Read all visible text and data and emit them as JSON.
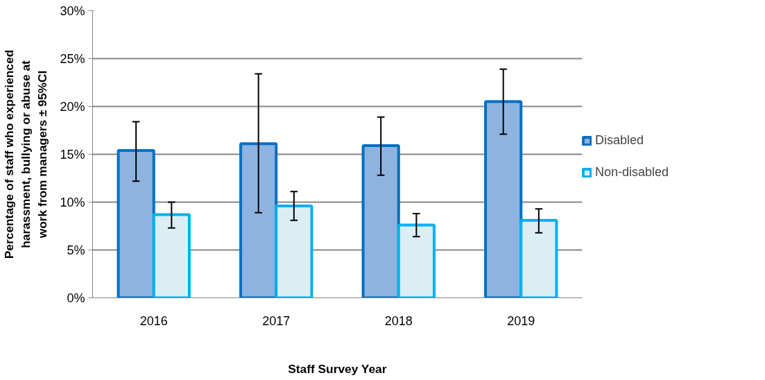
{
  "chart_data": {
    "type": "bar",
    "xlabel": "Staff Survey Year",
    "ylabel": "Percentage of staff who experienced harassment, bullying or abuse at work from managers ± 95%CI",
    "categories": [
      "2016",
      "2017",
      "2018",
      "2019"
    ],
    "series": [
      {
        "name": "Disabled",
        "color": "#8eb3e0",
        "values": [
          15.4,
          16.1,
          15.9,
          20.5
        ],
        "errors": [
          [
            12.2,
            18.4
          ],
          [
            8.9,
            23.4
          ],
          [
            12.8,
            18.9
          ],
          [
            17.1,
            23.9
          ]
        ]
      },
      {
        "name": "Non-disabled",
        "color": "#dbeef4",
        "values": [
          8.7,
          9.6,
          7.6,
          8.1
        ],
        "errors": [
          [
            7.3,
            10.0
          ],
          [
            8.1,
            11.1
          ],
          [
            6.4,
            8.8
          ],
          [
            6.8,
            9.3
          ]
        ]
      }
    ],
    "ylim": [
      0,
      30
    ],
    "yticks": [
      {
        "value": 0,
        "label": "0%"
      },
      {
        "value": 5,
        "label": "5%"
      },
      {
        "value": 10,
        "label": "10%"
      },
      {
        "value": 15,
        "label": "15%"
      },
      {
        "value": 20,
        "label": "20%"
      },
      {
        "value": 25,
        "label": "25%"
      },
      {
        "value": 30,
        "label": "30%"
      }
    ],
    "grid": "y",
    "legend": "right"
  }
}
